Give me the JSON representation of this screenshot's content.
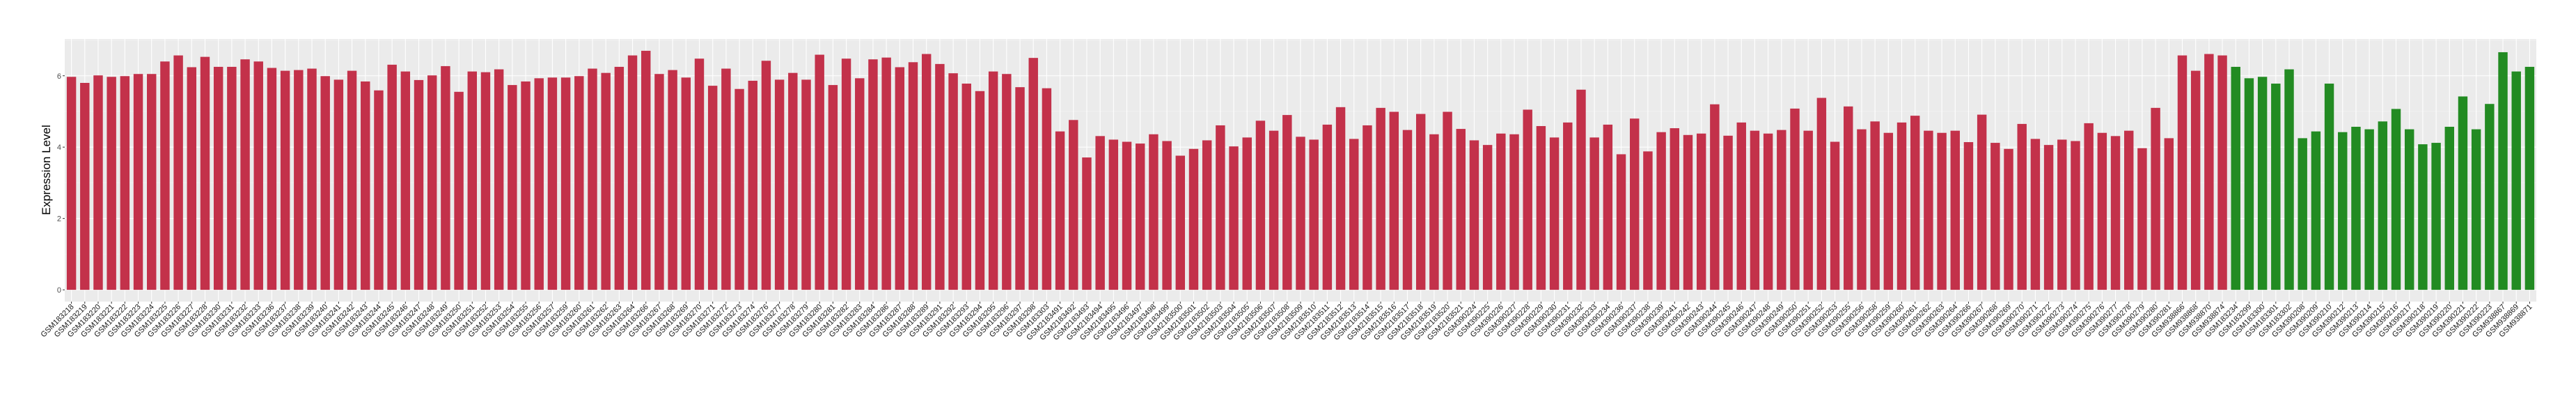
{
  "chart_data": {
    "type": "bar",
    "title": "",
    "xlabel": "",
    "ylabel": "Expression Level",
    "ylim": [
      -0.33,
      7.03
    ],
    "yticks": [
      "0",
      "2",
      "4",
      "6"
    ],
    "grid": true,
    "legend": "none",
    "panel_background": "#EBEBEB",
    "series": [
      {
        "color": "#C3314A",
        "categories": [
          "GSM183218",
          "GSM183219",
          "GSM183220",
          "GSM183221",
          "GSM183222",
          "GSM183223",
          "GSM183224",
          "GSM183225",
          "GSM183226",
          "GSM183227",
          "GSM183228",
          "GSM183230",
          "GSM183231",
          "GSM183232",
          "GSM183233",
          "GSM183236",
          "GSM183237",
          "GSM183238",
          "GSM183239",
          "GSM183240",
          "GSM183241",
          "GSM183242",
          "GSM183243",
          "GSM183244",
          "GSM183245",
          "GSM183246",
          "GSM183247",
          "GSM183248",
          "GSM183249",
          "GSM183250",
          "GSM183251",
          "GSM183252",
          "GSM183253",
          "GSM183254",
          "GSM183255",
          "GSM183256",
          "GSM183257",
          "GSM183259",
          "GSM183260",
          "GSM183261",
          "GSM183262",
          "GSM183263",
          "GSM183264",
          "GSM183266",
          "GSM183267",
          "GSM183268",
          "GSM183269",
          "GSM183270",
          "GSM183271",
          "GSM183272",
          "GSM183273",
          "GSM183274",
          "GSM183276",
          "GSM183277",
          "GSM183278",
          "GSM183279",
          "GSM183280",
          "GSM183281",
          "GSM183282",
          "GSM183283",
          "GSM183284",
          "GSM183286",
          "GSM183287",
          "GSM183288",
          "GSM183289",
          "GSM183291",
          "GSM183292",
          "GSM183293",
          "GSM183294",
          "GSM183295",
          "GSM183296",
          "GSM183297",
          "GSM183298",
          "GSM183303",
          "GSM2183491",
          "GSM2183492",
          "GSM2183493",
          "GSM2183494",
          "GSM2183495",
          "GSM2183496",
          "GSM2183497",
          "GSM2183498",
          "GSM2183499",
          "GSM2183500",
          "GSM2183501",
          "GSM2183502",
          "GSM2183503",
          "GSM2183504",
          "GSM2183505",
          "GSM2183506",
          "GSM2183507",
          "GSM2183508",
          "GSM2183509",
          "GSM2183510",
          "GSM2183511",
          "GSM2183512",
          "GSM2183513",
          "GSM2183514",
          "GSM2183515",
          "GSM2183516",
          "GSM2183517",
          "GSM2183518",
          "GSM2183519",
          "GSM2183520",
          "GSM2183521",
          "GSM390224",
          "GSM390225",
          "GSM390226",
          "GSM390227",
          "GSM390228",
          "GSM390229",
          "GSM390230",
          "GSM390231",
          "GSM390232",
          "GSM390233",
          "GSM390234",
          "GSM390236",
          "GSM390237",
          "GSM390238",
          "GSM390239",
          "GSM390241",
          "GSM390242",
          "GSM390243",
          "GSM390244",
          "GSM390245",
          "GSM390246",
          "GSM390247",
          "GSM390248",
          "GSM390249",
          "GSM390250",
          "GSM390251",
          "GSM390252",
          "GSM390253",
          "GSM390255",
          "GSM390256",
          "GSM390258",
          "GSM390259",
          "GSM390260",
          "GSM390261",
          "GSM390262",
          "GSM390263",
          "GSM390264",
          "GSM390266",
          "GSM390267",
          "GSM390268",
          "GSM390269",
          "GSM390270",
          "GSM390271",
          "GSM390272",
          "GSM390273",
          "GSM390274",
          "GSM390275",
          "GSM390276",
          "GSM390277",
          "GSM390278",
          "GSM390279",
          "GSM390280",
          "GSM390281",
          "GSM938866",
          "GSM938868",
          "GSM938870",
          "GSM938874"
        ],
        "values": [
          5.97,
          5.8,
          6.01,
          5.97,
          5.99,
          6.05,
          6.05,
          6.4,
          6.57,
          6.24,
          6.53,
          6.25,
          6.25,
          6.46,
          6.4,
          6.22,
          6.14,
          6.16,
          6.2,
          5.99,
          5.89,
          6.14,
          5.84,
          5.59,
          6.31,
          6.12,
          5.88,
          6.01,
          6.27,
          5.55,
          6.12,
          6.1,
          6.18,
          5.74,
          5.84,
          5.93,
          5.95,
          5.95,
          5.99,
          6.2,
          6.08,
          6.25,
          6.57,
          6.7,
          6.05,
          6.16,
          5.95,
          6.48,
          5.72,
          6.2,
          5.63,
          5.86,
          6.42,
          5.89,
          6.08,
          5.89,
          6.59,
          5.74,
          6.48,
          5.93,
          6.46,
          6.51,
          6.24,
          6.38,
          6.61,
          6.33,
          6.07,
          5.78,
          5.57,
          6.12,
          6.05,
          5.68,
          6.5,
          5.65,
          4.44,
          4.76,
          3.71,
          4.31,
          4.21,
          4.15,
          4.1,
          4.36,
          4.17,
          3.76,
          3.95,
          4.19,
          4.61,
          4.02,
          4.27,
          4.74,
          4.46,
          4.9,
          4.29,
          4.21,
          4.63,
          5.12,
          4.23,
          4.61,
          5.1,
          4.99,
          4.48,
          4.93,
          4.36,
          4.99,
          4.51,
          4.19,
          4.06,
          4.38,
          4.36,
          5.05,
          4.59,
          4.27,
          4.69,
          5.61,
          4.27,
          4.63,
          3.8,
          4.8,
          3.88,
          4.42,
          4.53,
          4.34,
          4.38,
          5.2,
          4.32,
          4.69,
          4.46,
          4.38,
          4.48,
          5.08,
          4.46,
          5.38,
          4.15,
          5.14,
          4.5,
          4.72,
          4.4,
          4.69,
          4.88,
          4.46,
          4.4,
          4.46,
          4.14,
          4.91,
          4.12,
          3.95,
          4.65,
          4.23,
          4.06,
          4.21,
          4.17,
          4.67,
          4.4,
          4.31,
          4.46,
          3.97,
          5.1,
          4.25,
          6.57,
          6.14,
          6.61,
          6.57
        ]
      },
      {
        "color": "#228B22",
        "categories": [
          "GSM183234",
          "GSM183299",
          "GSM183300",
          "GSM183301",
          "GSM183302",
          "GSM390208",
          "GSM390209",
          "GSM390210",
          "GSM390212",
          "GSM390213",
          "GSM390214",
          "GSM390215",
          "GSM390216",
          "GSM390217",
          "GSM390218",
          "GSM390219",
          "GSM390220",
          "GSM390221",
          "GSM390222",
          "GSM390223",
          "GSM938867",
          "GSM938869",
          "GSM938871"
        ],
        "values": [
          6.25,
          5.93,
          5.97,
          5.78,
          6.18,
          4.25,
          4.44,
          5.78,
          4.42,
          4.57,
          4.5,
          4.72,
          5.07,
          4.5,
          4.08,
          4.12,
          4.57,
          5.42,
          4.5,
          5.21,
          6.66,
          6.12,
          6.25
        ]
      }
    ]
  }
}
